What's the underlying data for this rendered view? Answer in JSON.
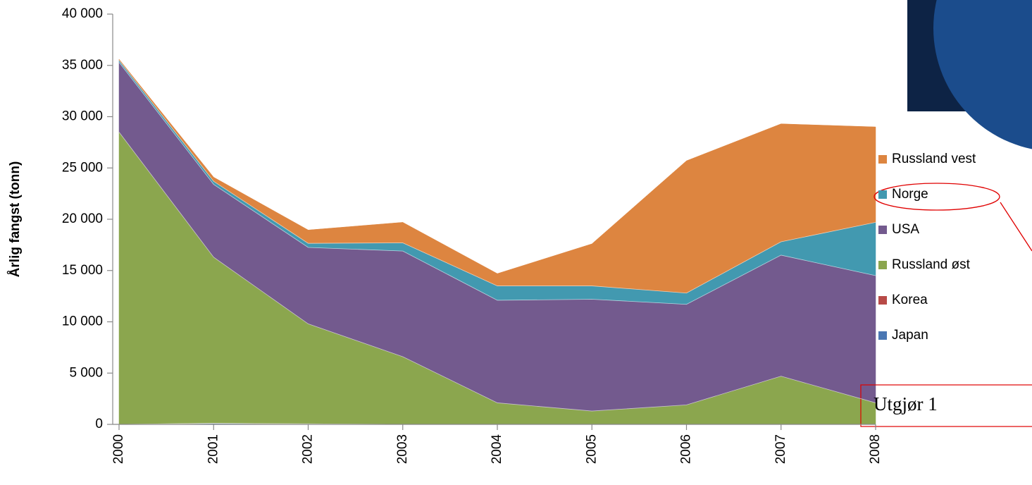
{
  "chart_data": {
    "type": "stacked_area",
    "y_label": "Årlig fangst  (tonn)",
    "categories": [
      "2000",
      "2001",
      "2002",
      "2003",
      "2004",
      "2005",
      "2006",
      "2007",
      "2008"
    ],
    "series": [
      {
        "name": "Japan",
        "color": "#4a77b3",
        "values": [
          0,
          100,
          50,
          0,
          0,
          0,
          0,
          0,
          0
        ]
      },
      {
        "name": "Korea",
        "color": "#b84a47",
        "values": [
          0,
          0,
          0,
          0,
          0,
          0,
          0,
          0,
          0
        ]
      },
      {
        "name": "Russland øst",
        "color": "#8ba64e",
        "values": [
          28500,
          16200,
          9750,
          6600,
          2100,
          1300,
          1900,
          4700,
          2100
        ]
      },
      {
        "name": "USA",
        "color": "#735a8e",
        "values": [
          6800,
          7100,
          7450,
          10300,
          10000,
          10900,
          9800,
          11800,
          12400
        ]
      },
      {
        "name": "Norge",
        "color": "#4299b0",
        "values": [
          200,
          300,
          400,
          800,
          1400,
          1300,
          1100,
          1300,
          5200
        ]
      },
      {
        "name": "Russland vest",
        "color": "#dd8540",
        "values": [
          100,
          400,
          1300,
          2000,
          1200,
          4100,
          12900,
          11500,
          9300
        ]
      }
    ],
    "ylim": [
      0,
      40000
    ],
    "yticks": [
      0,
      {
        "value": 5000,
        "label": "5 000"
      },
      {
        "value": 10000,
        "label": "10 000"
      },
      {
        "value": 15000,
        "label": "15 000"
      },
      {
        "value": 20000,
        "label": "20 000"
      },
      {
        "value": 25000,
        "label": "25 000"
      },
      {
        "value": 30000,
        "label": "30 000"
      },
      {
        "value": 35000,
        "label": "35 000"
      },
      {
        "value": 40000,
        "label": "40 000"
      }
    ],
    "grid": false,
    "annotation": "Utgjør 1"
  }
}
